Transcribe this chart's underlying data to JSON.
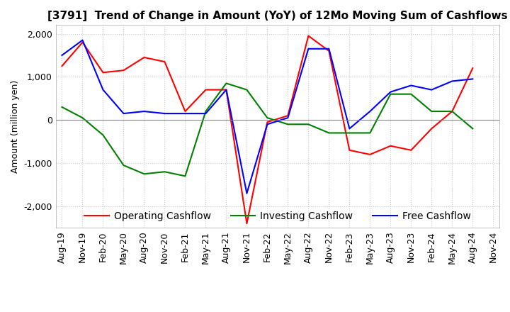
{
  "title": "[3791]  Trend of Change in Amount (YoY) of 12Mo Moving Sum of Cashflows",
  "ylabel": "Amount (million yen)",
  "ylim": [
    -2500,
    2200
  ],
  "yticks": [
    -2000,
    -1000,
    0,
    1000,
    2000
  ],
  "x_labels": [
    "Aug-19",
    "Nov-19",
    "Feb-20",
    "May-20",
    "Aug-20",
    "Nov-20",
    "Feb-21",
    "May-21",
    "Aug-21",
    "Nov-21",
    "Feb-22",
    "May-22",
    "Aug-22",
    "Nov-22",
    "Feb-23",
    "May-23",
    "Aug-23",
    "Nov-23",
    "Feb-24",
    "May-24",
    "Aug-24",
    "Nov-24"
  ],
  "operating": [
    1250,
    1800,
    1100,
    1150,
    1450,
    1350,
    200,
    700,
    700,
    -2400,
    -50,
    100,
    1950,
    1600,
    -700,
    -800,
    -600,
    -700,
    -200,
    200,
    1200,
    null
  ],
  "investing": [
    300,
    50,
    -350,
    -1050,
    -1250,
    -1200,
    -1300,
    200,
    850,
    700,
    50,
    -100,
    -100,
    -300,
    -300,
    -300,
    600,
    600,
    200,
    200,
    -200,
    null
  ],
  "free": [
    1500,
    1850,
    700,
    150,
    200,
    150,
    150,
    150,
    700,
    -1700,
    -100,
    50,
    1650,
    1650,
    -200,
    200,
    650,
    800,
    700,
    900,
    950,
    null
  ],
  "operating_color": "#ff0000",
  "investing_color": "#008000",
  "free_color": "#0000ff",
  "background_color": "#ffffff",
  "grid_color": "#c8c8c8",
  "title_fontsize": 11,
  "legend_fontsize": 10,
  "axis_fontsize": 9
}
